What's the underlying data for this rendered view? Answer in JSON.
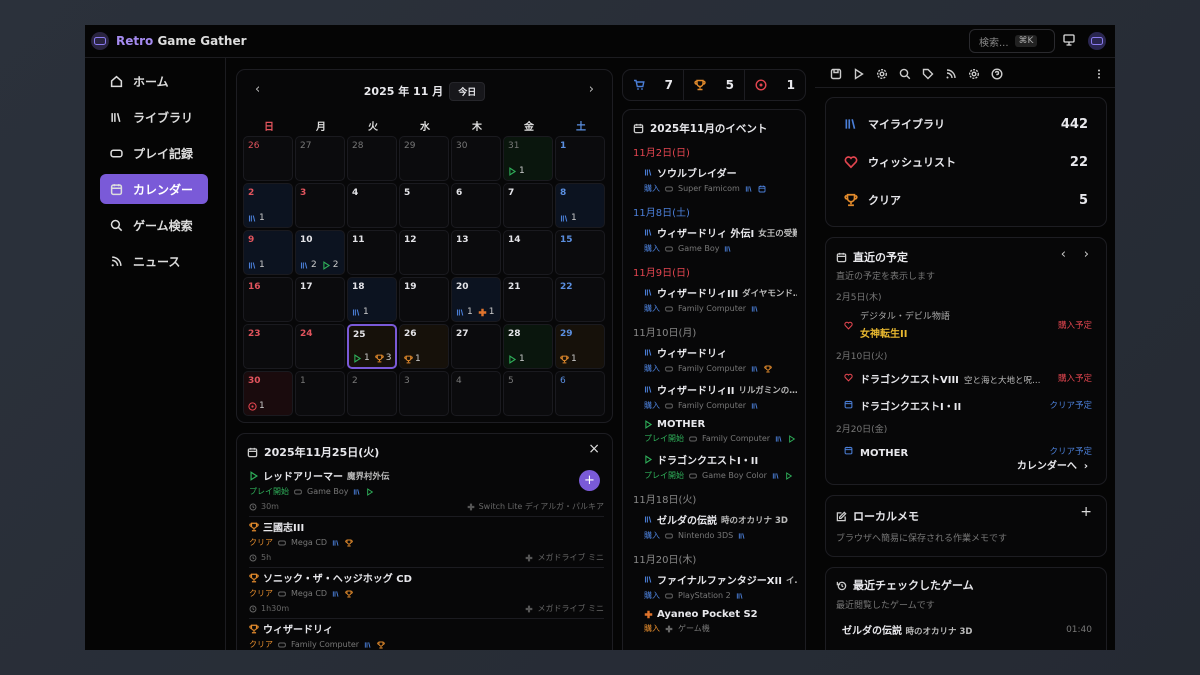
{
  "app": {
    "brand_prefix": "Retro",
    "brand_rest": " Game Gather",
    "search_placeholder": "検索...",
    "search_kbd": "⌘K"
  },
  "colors": {
    "accent": "#7a5ad8",
    "library": "#4b7fd8",
    "play": "#2fb05a",
    "clear": "#e38b2c",
    "wish": "#e2454f"
  },
  "sidebar": {
    "items": [
      {
        "label": "ホーム",
        "icon": "home-icon"
      },
      {
        "label": "ライブラリ",
        "icon": "library-icon"
      },
      {
        "label": "プレイ記録",
        "icon": "gamepad-icon"
      },
      {
        "label": "カレンダー",
        "icon": "calendar-icon",
        "active": true
      },
      {
        "label": "ゲーム検索",
        "icon": "search-icon"
      },
      {
        "label": "ニュース",
        "icon": "rss-icon"
      }
    ]
  },
  "calendar": {
    "title": "2025 年 11 月",
    "today_label": "今日",
    "weekdays": [
      "日",
      "月",
      "火",
      "水",
      "木",
      "金",
      "土"
    ],
    "cells": [
      {
        "d": "26",
        "m": 1
      },
      {
        "d": "27",
        "m": 1
      },
      {
        "d": "28",
        "m": 1
      },
      {
        "d": "29",
        "m": 1
      },
      {
        "d": "30",
        "m": 1
      },
      {
        "d": "31",
        "m": 1,
        "tint": "g",
        "b": [
          [
            "play",
            1
          ]
        ]
      },
      {
        "d": "1"
      },
      {
        "d": "2",
        "tint": "b",
        "b": [
          [
            "lib",
            1
          ]
        ]
      },
      {
        "d": "3",
        "hol": 1
      },
      {
        "d": "4"
      },
      {
        "d": "5"
      },
      {
        "d": "6"
      },
      {
        "d": "7"
      },
      {
        "d": "8",
        "tint": "b",
        "b": [
          [
            "lib",
            1
          ]
        ]
      },
      {
        "d": "9",
        "tint": "b",
        "b": [
          [
            "lib",
            1
          ]
        ]
      },
      {
        "d": "10",
        "tint": "b",
        "b": [
          [
            "lib",
            2
          ],
          [
            "play",
            2
          ]
        ]
      },
      {
        "d": "11"
      },
      {
        "d": "12"
      },
      {
        "d": "13"
      },
      {
        "d": "14"
      },
      {
        "d": "15"
      },
      {
        "d": "16"
      },
      {
        "d": "17"
      },
      {
        "d": "18",
        "tint": "b",
        "b": [
          [
            "lib",
            1
          ]
        ]
      },
      {
        "d": "19"
      },
      {
        "d": "20",
        "tint": "b",
        "b": [
          [
            "lib",
            1
          ],
          [
            "device",
            1
          ]
        ]
      },
      {
        "d": "21"
      },
      {
        "d": "22"
      },
      {
        "d": "23"
      },
      {
        "d": "24",
        "hol": 1
      },
      {
        "d": "25",
        "sel": 1,
        "tint": "o",
        "b": [
          [
            "play",
            1
          ],
          [
            "trophy",
            3
          ]
        ]
      },
      {
        "d": "26",
        "tint": "o",
        "b": [
          [
            "trophy",
            1
          ]
        ]
      },
      {
        "d": "27"
      },
      {
        "d": "28",
        "tint": "g",
        "b": [
          [
            "play",
            1
          ]
        ]
      },
      {
        "d": "29",
        "tint": "o",
        "b": [
          [
            "trophy",
            1
          ]
        ]
      },
      {
        "d": "30",
        "tint": "r",
        "b": [
          [
            "target",
            1
          ]
        ]
      },
      {
        "d": "1",
        "m": 1
      },
      {
        "d": "2",
        "m": 1
      },
      {
        "d": "3",
        "m": 1
      },
      {
        "d": "4",
        "m": 1
      },
      {
        "d": "5",
        "m": 1
      },
      {
        "d": "6",
        "m": 1
      }
    ]
  },
  "day_detail": {
    "title": "2025年11月25日(火)",
    "items": [
      {
        "icon": "play",
        "title": "レッドアリーマー",
        "sub": "魔界村外伝",
        "status": "プレイ開始",
        "sc": "green",
        "platform": "Game Boy",
        "tags": [
          "lib",
          "play"
        ],
        "time": "30m",
        "device": "Switch Lite ディアルガ・パルキア"
      },
      {
        "icon": "trophy",
        "title": "三國志III",
        "sub": "",
        "status": "クリア",
        "sc": "orange",
        "platform": "Mega CD",
        "tags": [
          "lib",
          "trophy"
        ],
        "time": "5h",
        "device": "メガドライブ ミニ"
      },
      {
        "icon": "trophy",
        "title": "ソニック・ザ・ヘッジホッグ CD",
        "sub": "",
        "status": "クリア",
        "sc": "orange",
        "platform": "Mega CD",
        "tags": [
          "lib",
          "trophy"
        ],
        "time": "1h30m",
        "device": "メガドライブ ミニ"
      },
      {
        "icon": "trophy",
        "title": "ウィザードリィ",
        "sub": "",
        "status": "クリア",
        "sc": "orange",
        "platform": "Family Computer",
        "tags": [
          "lib",
          "trophy"
        ]
      }
    ]
  },
  "stats_bar": [
    {
      "icon": "cart",
      "value": "7"
    },
    {
      "icon": "trophy",
      "value": "5"
    },
    {
      "icon": "target",
      "value": "1"
    }
  ],
  "events": {
    "title": "2025年11月のイベント",
    "groups": [
      {
        "date": "11月2日(日)",
        "c": "red",
        "items": [
          {
            "icon": "lib",
            "title": "ソウルブレイダー",
            "sub": "",
            "status": "購入",
            "sc": "blue",
            "platform": "Super Famicom",
            "tags": [
              "lib",
              "cal"
            ]
          }
        ]
      },
      {
        "date": "11月8日(土)",
        "c": "blue",
        "items": [
          {
            "icon": "lib",
            "title": "ウィザードリィ 外伝I",
            "sub": "女王の受難",
            "status": "購入",
            "sc": "blue",
            "platform": "Game Boy",
            "tags": [
              "lib"
            ]
          }
        ]
      },
      {
        "date": "11月9日(日)",
        "c": "red",
        "items": [
          {
            "icon": "lib",
            "title": "ウィザードリィIII",
            "sub": "ダイヤモンド…",
            "status": "購入",
            "sc": "blue",
            "platform": "Family Computer",
            "tags": [
              "lib"
            ]
          }
        ]
      },
      {
        "date": "11月10日(月)",
        "c": "",
        "items": [
          {
            "icon": "lib",
            "title": "ウィザードリィ",
            "sub": "",
            "status": "購入",
            "sc": "blue",
            "platform": "Family Computer",
            "tags": [
              "lib",
              "trophy"
            ]
          },
          {
            "icon": "lib",
            "title": "ウィザードリィII",
            "sub": "リルガミンの…",
            "status": "購入",
            "sc": "blue",
            "platform": "Family Computer",
            "tags": [
              "lib"
            ]
          },
          {
            "icon": "play",
            "title": "MOTHER",
            "sub": "",
            "status": "プレイ開始",
            "sc": "green",
            "platform": "Family Computer",
            "tags": [
              "lib",
              "play"
            ]
          },
          {
            "icon": "play",
            "title": "ドラゴンクエストI・II",
            "sub": "",
            "status": "プレイ開始",
            "sc": "green",
            "platform": "Game Boy Color",
            "tags": [
              "lib",
              "play"
            ]
          }
        ]
      },
      {
        "date": "11月18日(火)",
        "c": "",
        "items": [
          {
            "icon": "lib",
            "title": "ゼルダの伝説",
            "sub": "時のオカリナ 3D",
            "status": "購入",
            "sc": "blue",
            "platform": "Nintendo 3DS",
            "tags": [
              "lib"
            ]
          }
        ]
      },
      {
        "date": "11月20日(木)",
        "c": "",
        "items": [
          {
            "icon": "lib",
            "title": "ファイナルファンタジーXII",
            "sub": "イ…",
            "status": "購入",
            "sc": "blue",
            "platform": "PlayStation 2",
            "tags": [
              "lib"
            ]
          },
          {
            "icon": "device",
            "title": "Ayaneo Pocket S2",
            "sub": "",
            "status": "購入",
            "sc": "orange",
            "platform": "ゲーム機",
            "ptype": "device",
            "tags": []
          }
        ]
      }
    ]
  },
  "toolbar_icons": [
    "save-icon",
    "play-icon",
    "gamepad-icon",
    "search-icon",
    "tag-icon",
    "rss-icon",
    "gear-icon",
    "help-icon",
    "more-icon"
  ],
  "summary": [
    {
      "icon": "lib",
      "label": "マイライブラリ",
      "value": "442"
    },
    {
      "icon": "heart",
      "label": "ウィッシュリスト",
      "value": "22"
    },
    {
      "icon": "trophy",
      "label": "クリア",
      "value": "5"
    }
  ],
  "upcoming": {
    "title": "直近の予定",
    "desc": "直近の予定を表示します",
    "link": "カレンダーへ",
    "groups": [
      {
        "date": "2月5日(木)",
        "items": [
          {
            "icon": "heart",
            "pre": "デジタル・デビル物語",
            "title": "女神転生II",
            "status": "購入予定",
            "sc": "red"
          }
        ]
      },
      {
        "date": "2月10日(火)",
        "items": [
          {
            "icon": "heart",
            "title": "ドラゴンクエストVIII",
            "sub": "空と海と大地と呪…",
            "status": "購入予定",
            "sc": "red"
          },
          {
            "icon": "cal",
            "title": "ドラゴンクエストI・II",
            "status": "クリア予定",
            "sc": "blue"
          }
        ]
      },
      {
        "date": "2月20日(金)",
        "items": [
          {
            "icon": "cal",
            "title": "MOTHER",
            "status": "クリア予定",
            "sc": "blue"
          }
        ]
      }
    ]
  },
  "memo": {
    "title": "ローカルメモ",
    "desc": "ブラウザへ簡易に保存される作業メモです"
  },
  "recent": {
    "title": "最近チェックしたゲーム",
    "desc": "最近閲覧したゲームです",
    "items": [
      {
        "title": "ゼルダの伝説",
        "sub": "時のオカリナ 3D",
        "time": "01:40"
      }
    ]
  }
}
